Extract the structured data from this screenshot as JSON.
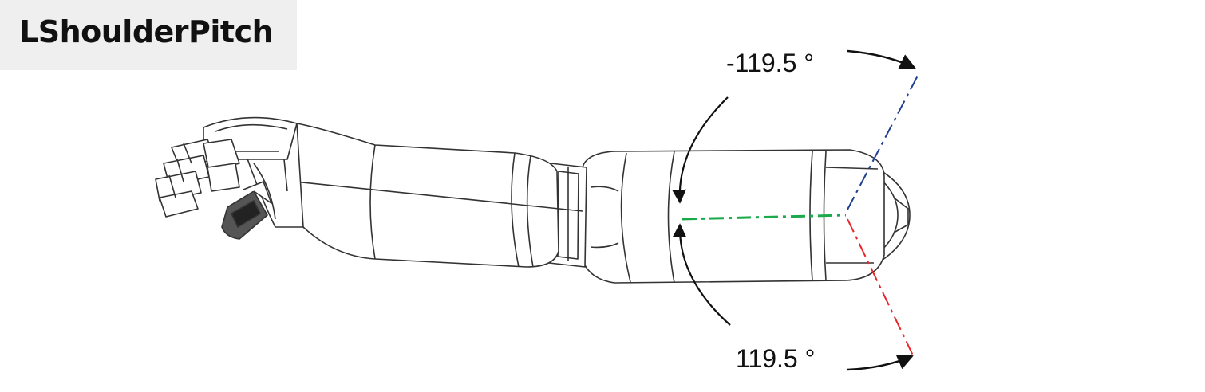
{
  "title": "LShoulderPitch",
  "angles": {
    "min_label": "-119.5 °",
    "max_label": "119.5 °"
  },
  "colors": {
    "axis_min": "#1f3f8f",
    "axis_neutral": "#1aaa4a",
    "axis_max": "#e8262a",
    "line": "#333333"
  }
}
